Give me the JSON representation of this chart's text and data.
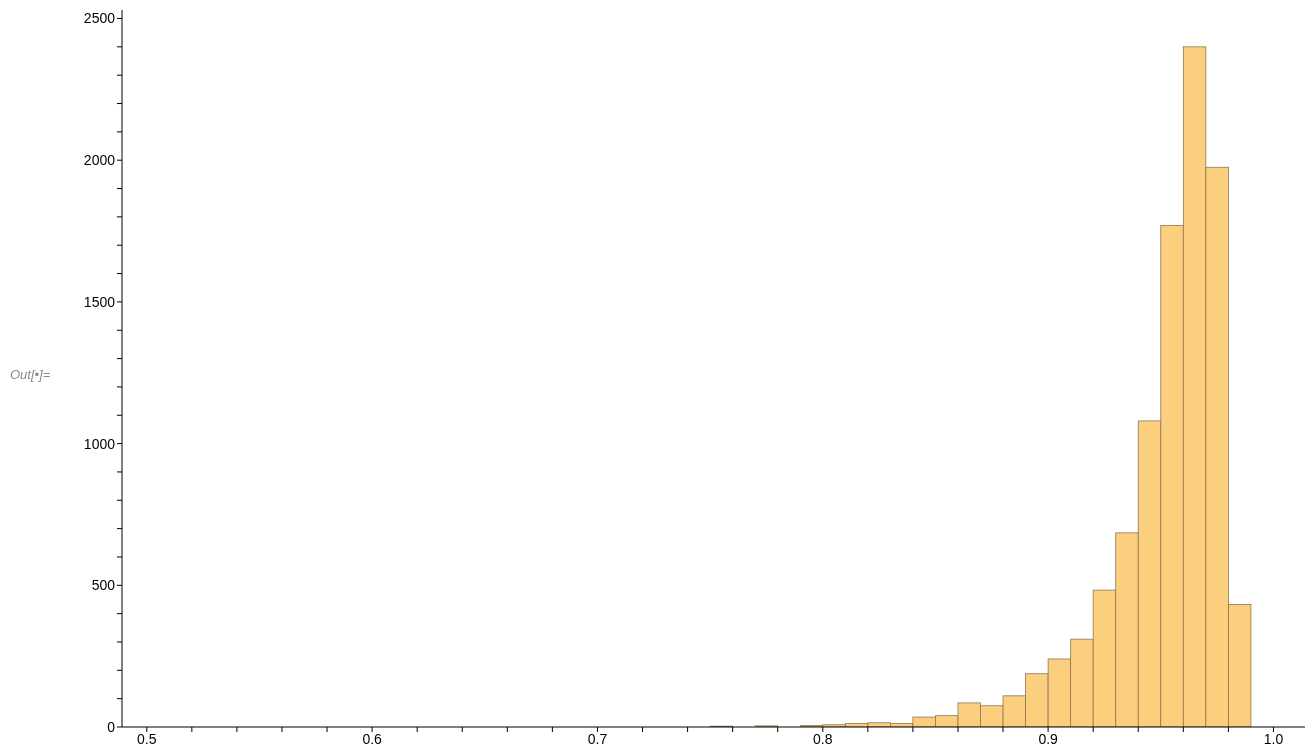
{
  "chart_data": {
    "type": "histogram",
    "bins": [
      0.7,
      0.71,
      0.72,
      0.73,
      0.74,
      0.75,
      0.76,
      0.77,
      0.78,
      0.79,
      0.8,
      0.81,
      0.82,
      0.83,
      0.84,
      0.85,
      0.86,
      0.87,
      0.88,
      0.89,
      0.9,
      0.91,
      0.92,
      0.93,
      0.94,
      0.95,
      0.96,
      0.97,
      0.98,
      0.99
    ],
    "values": [
      0,
      null,
      0,
      null,
      null,
      3,
      null,
      4,
      null,
      5,
      8,
      12,
      15,
      12,
      35,
      40,
      85,
      75,
      110,
      188,
      240,
      310,
      483,
      685,
      1080,
      1770,
      2400,
      1975,
      432
    ],
    "color": "#fccf7f",
    "xlim": [
      0.489,
      1.014
    ],
    "xticks": [
      0.5,
      {
        "value": 0.52,
        "label": null
      },
      {
        "value": 0.54,
        "label": null
      },
      {
        "value": 0.56,
        "label": null
      },
      {
        "value": 0.58,
        "label": null
      },
      0.6,
      {
        "value": 0.62,
        "label": null
      },
      {
        "value": 0.64,
        "label": null
      },
      {
        "value": 0.66,
        "label": null
      },
      {
        "value": 0.68,
        "label": null
      },
      0.7,
      {
        "value": 0.72,
        "label": null
      },
      {
        "value": 0.74,
        "label": null
      },
      {
        "value": 0.76,
        "label": null
      },
      {
        "value": 0.78,
        "label": null
      },
      0.8,
      {
        "value": 0.82,
        "label": null
      },
      {
        "value": 0.84,
        "label": null
      },
      {
        "value": 0.86,
        "label": null
      },
      {
        "value": 0.88,
        "label": null
      },
      0.9,
      {
        "value": 0.92,
        "label": null
      },
      {
        "value": 0.94,
        "label": null
      },
      {
        "value": 0.96,
        "label": null
      },
      {
        "value": 0.98,
        "label": null
      },
      {
        "value": 1.0,
        "label": "1.0"
      }
    ],
    "ylim": [
      0,
      2530
    ],
    "yticks": [
      0,
      {
        "value": 100,
        "label": null
      },
      {
        "value": 200,
        "label": null
      },
      {
        "value": 300,
        "label": null
      },
      {
        "value": 400,
        "label": null
      },
      500,
      {
        "value": 600,
        "label": null
      },
      {
        "value": 700,
        "label": null
      },
      {
        "value": 800,
        "label": null
      },
      {
        "value": 900,
        "label": null
      },
      1000,
      {
        "value": 1100,
        "label": null
      },
      {
        "value": 1200,
        "label": null
      },
      {
        "value": 1300,
        "label": null
      },
      {
        "value": 1400,
        "label": null
      },
      1500,
      {
        "value": 1600,
        "label": null
      },
      {
        "value": 1700,
        "label": null
      },
      {
        "value": 1800,
        "label": null
      },
      {
        "value": 1900,
        "label": null
      },
      2000,
      {
        "value": 2100,
        "label": null
      },
      {
        "value": 2200,
        "label": null
      },
      {
        "value": 2300,
        "label": null
      },
      {
        "value": 2400,
        "label": null
      },
      2500
    ],
    "annotations": [
      "Out[•]="
    ]
  }
}
